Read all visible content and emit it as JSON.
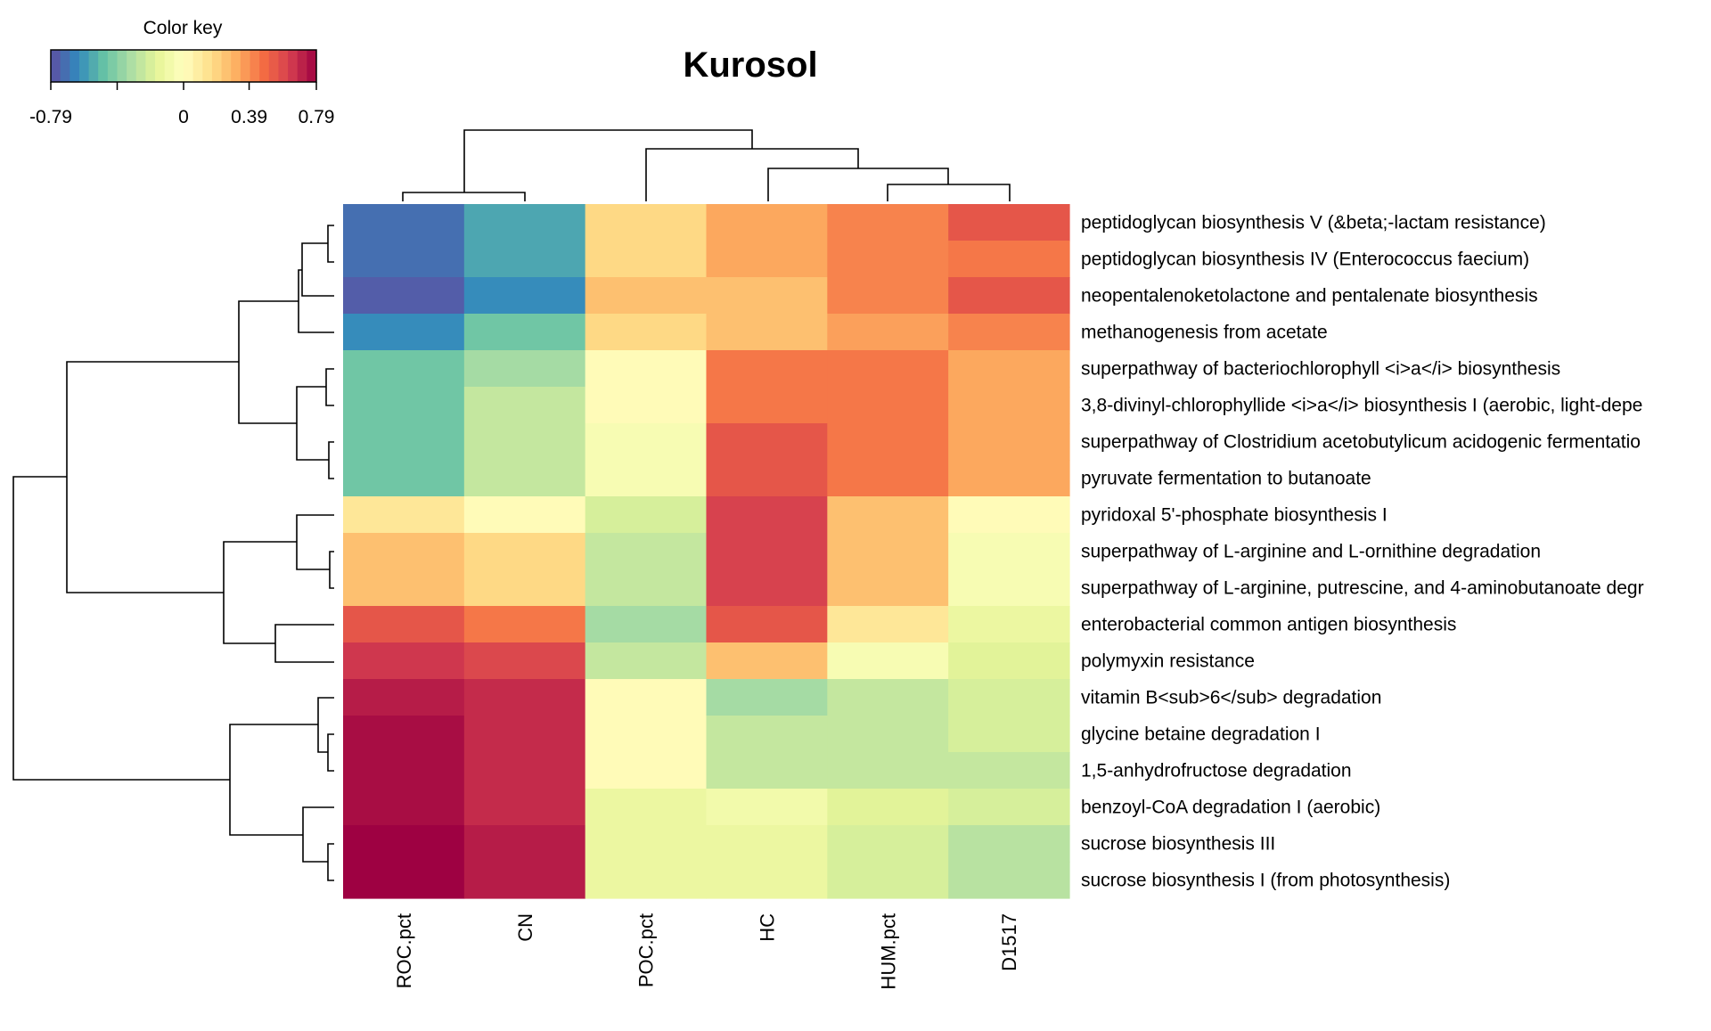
{
  "chart_data": {
    "type": "heatmap",
    "title": "Kurosol",
    "columns": [
      "ROC.pct",
      "CN",
      "POC.pct",
      "HC",
      "HUM.pct",
      "D1517"
    ],
    "rows": [
      "peptidoglycan biosynthesis V (&beta;-lactam resistance)",
      "peptidoglycan biosynthesis IV (Enterococcus faecium)",
      "neopentalenoketolactone and pentalenate biosynthesis",
      "methanogenesis from acetate",
      "superpathway of bacteriochlorophyll <i>a</i> biosynthesis",
      "3,8-divinyl-chlorophyllide <i>a</i> biosynthesis I (aerobic, light-depe",
      "superpathway of Clostridium acetobutylicum acidogenic fermentatio",
      "pyruvate fermentation to butanoate",
      "pyridoxal 5'-phosphate biosynthesis I",
      "superpathway of L-arginine and L-ornithine degradation",
      "superpathway of L-arginine, putrescine, and 4-aminobutanoate degr",
      "enterobacterial common antigen biosynthesis",
      "polymyxin resistance",
      "vitamin B<sub>6</sub> degradation",
      "glycine betaine degradation I",
      "1,5-anhydrofructose degradation",
      "benzoyl-CoA degradation I (aerobic)",
      "sucrose biosynthesis III",
      "sucrose biosynthesis I (from photosynthesis)"
    ],
    "values": [
      [
        -0.7,
        -0.55,
        0.18,
        0.33,
        0.42,
        0.55
      ],
      [
        -0.7,
        -0.55,
        0.18,
        0.33,
        0.42,
        0.45
      ],
      [
        -0.75,
        -0.62,
        0.26,
        0.26,
        0.42,
        0.55
      ],
      [
        -0.62,
        -0.45,
        0.18,
        0.26,
        0.35,
        0.42
      ],
      [
        -0.45,
        -0.33,
        0.02,
        0.45,
        0.45,
        0.33
      ],
      [
        -0.45,
        -0.25,
        0.02,
        0.45,
        0.45,
        0.33
      ],
      [
        -0.45,
        -0.25,
        -0.05,
        0.55,
        0.45,
        0.33
      ],
      [
        -0.45,
        -0.25,
        -0.05,
        0.55,
        0.45,
        0.33
      ],
      [
        0.12,
        0.02,
        -0.2,
        0.62,
        0.26,
        0.02
      ],
      [
        0.26,
        0.18,
        -0.25,
        0.62,
        0.26,
        -0.05
      ],
      [
        0.26,
        0.18,
        -0.25,
        0.62,
        0.26,
        -0.05
      ],
      [
        0.55,
        0.45,
        -0.33,
        0.55,
        0.12,
        -0.12
      ],
      [
        0.65,
        0.6,
        -0.25,
        0.26,
        -0.05,
        -0.17
      ],
      [
        0.72,
        0.68,
        0.02,
        -0.33,
        -0.25,
        -0.2
      ],
      [
        0.76,
        0.68,
        0.02,
        -0.25,
        -0.25,
        -0.2
      ],
      [
        0.76,
        0.68,
        0.02,
        -0.25,
        -0.25,
        -0.25
      ],
      [
        0.76,
        0.68,
        -0.12,
        -0.08,
        -0.17,
        -0.2
      ],
      [
        0.79,
        0.72,
        -0.12,
        -0.12,
        -0.2,
        -0.28
      ],
      [
        0.79,
        0.72,
        -0.12,
        -0.12,
        -0.2,
        -0.28
      ]
    ],
    "color_key": {
      "title": "Color key",
      "range": [
        -0.79,
        0.79
      ],
      "tick_labels": [
        "-0.79",
        "0",
        "0.39",
        "0.79"
      ],
      "tick_values": [
        -0.79,
        0,
        0.39,
        0.79
      ],
      "extra_tick_values": [
        -0.395
      ],
      "colors": [
        "#5E4FA2",
        "#3288BD",
        "#66C2A5",
        "#ABDDA4",
        "#E6F598",
        "#FFFFBF",
        "#FEE08B",
        "#FDAE61",
        "#F46D43",
        "#D53E4F",
        "#9E0142"
      ]
    },
    "legend_position": "top-left"
  }
}
